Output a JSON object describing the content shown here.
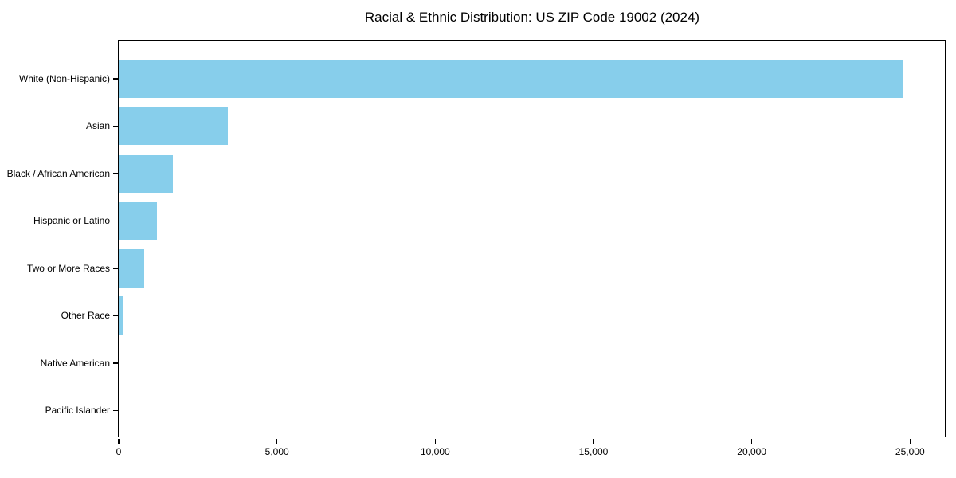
{
  "title": "Racial & Ethnic Distribution: US ZIP Code 19002 (2024)",
  "colors": {
    "bar": "#87CEEB",
    "axis": "#000000",
    "text": "#000000",
    "background": "#FFFFFF"
  },
  "chart_data": {
    "type": "bar",
    "orientation": "horizontal",
    "title": "Racial & Ethnic Distribution: US ZIP Code 19002 (2024)",
    "categories": [
      "White (Non-Hispanic)",
      "Asian",
      "Black / African American",
      "Hispanic or Latino",
      "Two or More Races",
      "Other Race",
      "Native American",
      "Pacific Islander"
    ],
    "values": [
      24800,
      3450,
      1700,
      1200,
      800,
      150,
      0,
      0
    ],
    "xlabel": "",
    "ylabel": "",
    "xlim": [
      0,
      26100
    ],
    "x_ticks": [
      0,
      5000,
      10000,
      15000,
      20000,
      25000
    ],
    "x_tick_labels": [
      "0",
      "5,000",
      "10,000",
      "15,000",
      "20,000",
      "25,000"
    ],
    "grid": false,
    "legend": null,
    "bar_color": "#87CEEB"
  }
}
